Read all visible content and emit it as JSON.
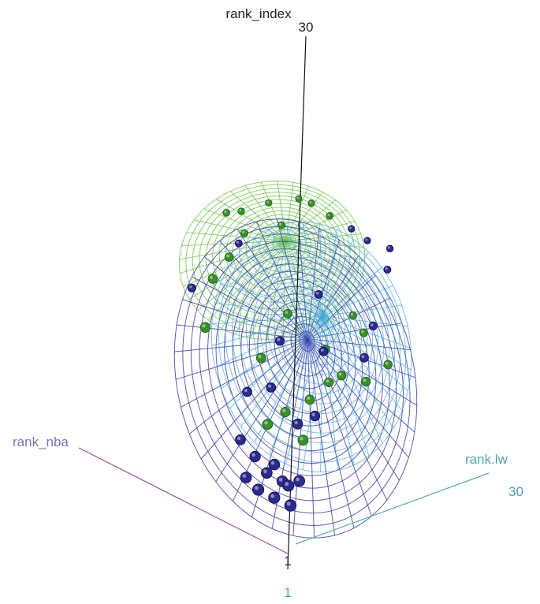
{
  "chart_data": {
    "type": "scatter",
    "subtype": "3d-scatter-with-ellipsoids",
    "title": "",
    "grid": false,
    "legend": "none",
    "axes": {
      "z": {
        "label": "rank_index",
        "tick_max": "30",
        "tick_min": "1",
        "color": "#222222"
      },
      "x": {
        "label": "rank_nba",
        "tick_min": "1",
        "color": "#8a4fa3"
      },
      "y": {
        "label": "rank.lw",
        "tick_max": "30",
        "tick_min": "1",
        "color": "#4fa3b0"
      }
    },
    "series": [
      {
        "color": "#3b8f2a",
        "ellipsoid_color": "#66c23d",
        "points": [
          [
            0.3,
            0.78,
            0.87
          ],
          [
            0.34,
            0.83,
            0.87
          ],
          [
            0.42,
            0.86,
            0.89
          ],
          [
            0.51,
            0.87,
            0.9
          ],
          [
            0.55,
            0.85,
            0.89
          ],
          [
            0.61,
            0.8,
            0.86
          ],
          [
            0.36,
            0.72,
            0.82
          ],
          [
            0.47,
            0.74,
            0.84
          ],
          [
            0.33,
            0.55,
            0.77
          ],
          [
            0.29,
            0.45,
            0.72
          ],
          [
            0.28,
            0.32,
            0.6
          ],
          [
            0.69,
            0.7,
            0.6
          ],
          [
            0.73,
            0.62,
            0.56
          ],
          [
            0.81,
            0.55,
            0.48
          ],
          [
            0.64,
            0.46,
            0.44
          ],
          [
            0.59,
            0.38,
            0.4
          ],
          [
            0.52,
            0.34,
            0.37
          ],
          [
            0.47,
            0.3,
            0.34
          ],
          [
            0.58,
            0.27,
            0.3
          ],
          [
            0.44,
            0.41,
            0.51
          ],
          [
            0.62,
            0.56,
            0.52
          ],
          [
            0.68,
            0.44,
            0.46
          ],
          [
            0.51,
            0.52,
            0.62
          ],
          [
            0.75,
            0.48,
            0.44
          ]
        ]
      },
      {
        "color": "#2d2a8e",
        "ellipsoid_color": "#3a33a6",
        "points": [
          [
            0.67,
            0.86,
            0.82
          ],
          [
            0.72,
            0.84,
            0.79
          ],
          [
            0.79,
            0.82,
            0.77
          ],
          [
            0.79,
            0.74,
            0.72
          ],
          [
            0.34,
            0.75,
            0.79
          ],
          [
            0.21,
            0.63,
            0.68
          ],
          [
            0.76,
            0.6,
            0.58
          ],
          [
            0.74,
            0.53,
            0.5
          ],
          [
            0.47,
            0.41,
            0.43
          ],
          [
            0.4,
            0.39,
            0.42
          ],
          [
            0.56,
            0.31,
            0.34
          ],
          [
            0.61,
            0.33,
            0.36
          ],
          [
            0.39,
            0.28,
            0.3
          ],
          [
            0.44,
            0.22,
            0.26
          ],
          [
            0.5,
            0.2,
            0.24
          ],
          [
            0.48,
            0.17,
            0.22
          ],
          [
            0.53,
            0.14,
            0.2
          ],
          [
            0.55,
            0.12,
            0.19
          ],
          [
            0.58,
            0.15,
            0.2
          ],
          [
            0.42,
            0.14,
            0.21
          ],
          [
            0.46,
            0.11,
            0.18
          ],
          [
            0.51,
            0.09,
            0.16
          ],
          [
            0.56,
            0.08,
            0.14
          ],
          [
            0.49,
            0.48,
            0.55
          ],
          [
            0.62,
            0.5,
            0.52
          ],
          [
            0.59,
            0.66,
            0.66
          ]
        ]
      }
    ]
  }
}
